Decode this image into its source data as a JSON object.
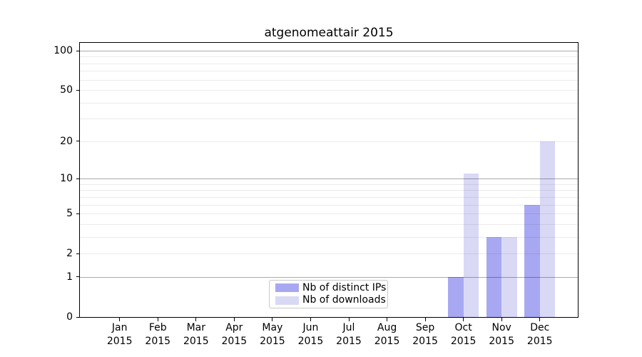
{
  "title": "atgenomeattair 2015",
  "chart_data": {
    "type": "bar",
    "title": "atgenomeattair 2015",
    "categories": [
      "Jan",
      "Feb",
      "Mar",
      "Apr",
      "May",
      "Jun",
      "Jul",
      "Aug",
      "Sep",
      "Oct",
      "Nov",
      "Dec"
    ],
    "year": "2015",
    "series": [
      {
        "name": "Nb of distinct IPs",
        "color": "#a8a8f2",
        "values": [
          0,
          0,
          0,
          0,
          0,
          0,
          0,
          0,
          0,
          1,
          3,
          6
        ]
      },
      {
        "name": "Nb of downloads",
        "color": "#d9d9f6",
        "values": [
          0,
          0,
          0,
          0,
          0,
          0,
          0,
          0,
          0,
          11,
          3,
          20
        ]
      }
    ],
    "xlabel": "",
    "ylabel": "",
    "yscale": "log1p",
    "ylim": [
      0,
      115
    ],
    "yticks": [
      0,
      1,
      2,
      5,
      10,
      20,
      50,
      100
    ],
    "major_gridlines": [
      1,
      10,
      100
    ],
    "minor_gridlines": [
      2,
      3,
      4,
      5,
      6,
      7,
      8,
      9,
      20,
      30,
      40,
      50,
      60,
      70,
      80,
      90
    ],
    "grid": "horizontal, drawn above bars",
    "legend_position": "lower center"
  }
}
